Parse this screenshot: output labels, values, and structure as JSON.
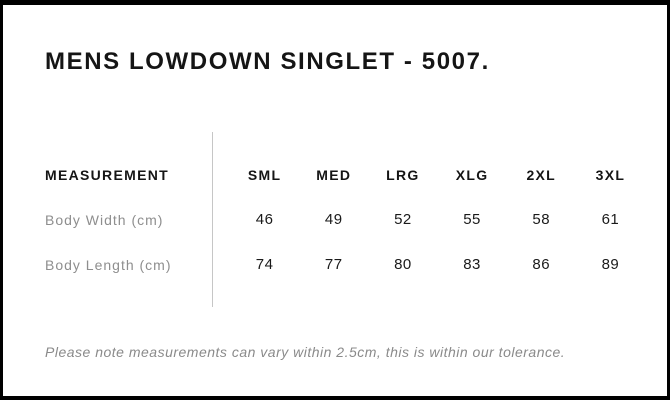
{
  "page": {
    "title": "MENS LOWDOWN SINGLET - 5007.",
    "note": "Please note measurements can vary within 2.5cm, this is within our tolerance."
  },
  "table": {
    "measurement_header": "MEASUREMENT",
    "size_headers": [
      "SML",
      "MED",
      "LRG",
      "XLG",
      "2XL",
      "3XL"
    ],
    "rows": [
      {
        "label": "Body Width (cm)",
        "values": [
          "46",
          "49",
          "52",
          "55",
          "58",
          "61"
        ]
      },
      {
        "label": "Body Length (cm)",
        "values": [
          "74",
          "77",
          "80",
          "83",
          "86",
          "89"
        ]
      }
    ]
  },
  "colors": {
    "background": "#ffffff",
    "frame_border": "#000000",
    "title_text": "#151515",
    "header_text": "#151515",
    "value_text": "#1a1a1a",
    "row_label_gray": "#8e8e8e",
    "note_gray": "#8a8a8a",
    "divider_gray": "#c6c6c6"
  }
}
